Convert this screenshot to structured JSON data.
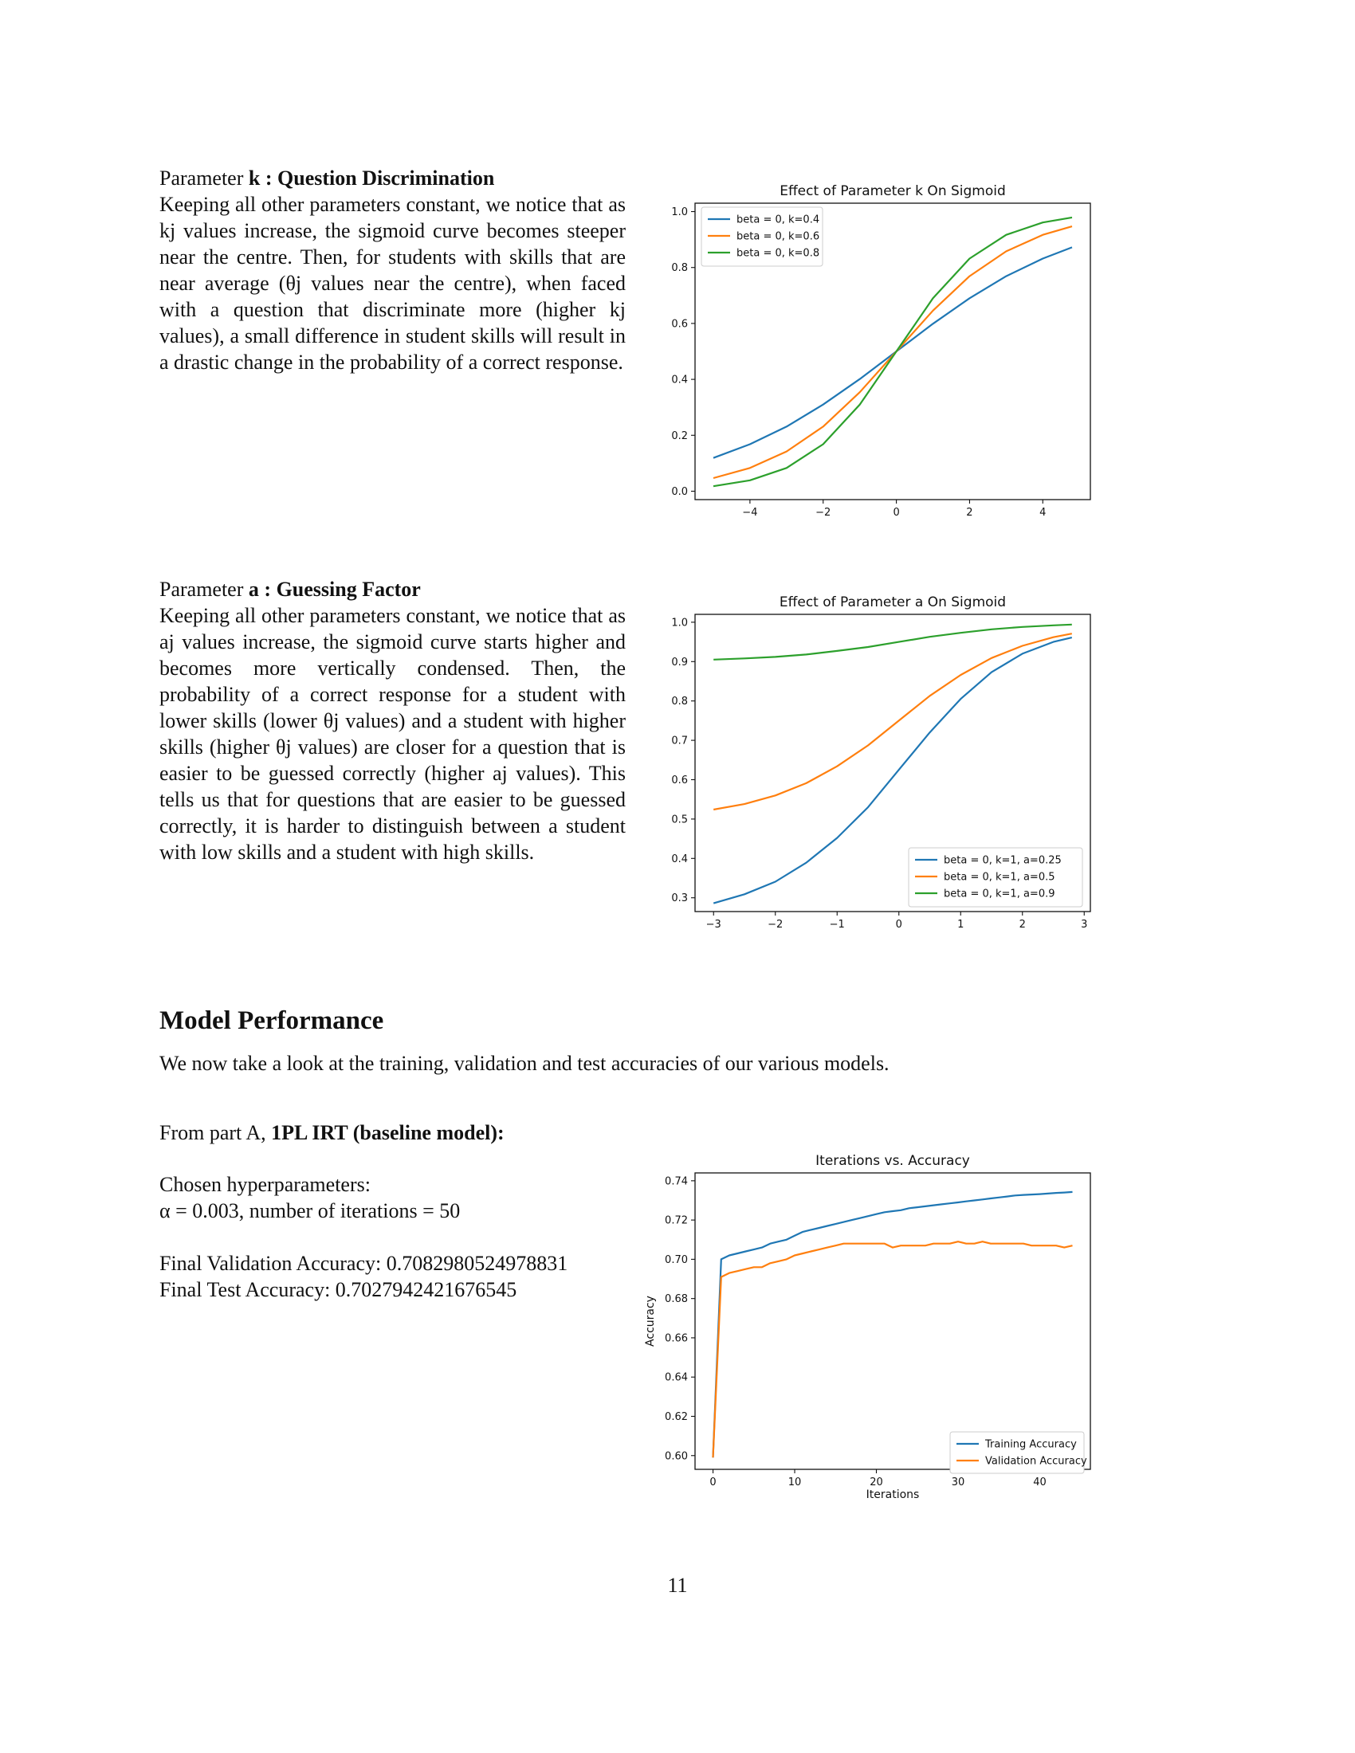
{
  "section_k": {
    "label_prefix": "Parameter",
    "param": "k :",
    "title": "Question Discrimination",
    "body": "Keeping all other parameters constant, we notice that as kj values increase, the sigmoid curve becomes steeper near the centre. Then, for students with skills that are near average (θj values near the centre), when faced with a question that discriminate more (higher kj values), a small difference in student skills will result in a drastic change in the probability of a correct response."
  },
  "section_a": {
    "label_prefix": "Parameter",
    "param": "a :",
    "title": "Guessing Factor",
    "body": "Keeping all other parameters constant, we notice that as aj values increase, the sigmoid curve starts higher and becomes more vertically condensed. Then, the probability of a correct response for a student with lower skills (lower θj values) and a student with higher skills (higher θj values) are closer for a question that is easier to be guessed correctly (higher aj values). This tells us that for questions that are easier to be guessed correctly, it is harder to distinguish between a student with low skills and a student with high skills."
  },
  "model_performance": {
    "heading": "Model Performance",
    "intro": "We now take a look at the training, validation and test accuracies of our various models.",
    "part_prefix": "From part A,",
    "part_title": "1PL IRT (baseline model):",
    "hyper_label": "Chosen hyperparameters:",
    "hyper_values": "α = 0.003, number of iterations = 50",
    "val_acc": "Final Validation Accuracy: 0.7082980524978831",
    "test_acc": "Final Test Accuracy: 0.7027942421676545"
  },
  "page_number": "11",
  "colors": {
    "blue": "#1f77b4",
    "orange": "#ff7f0e",
    "green": "#2ca02c"
  },
  "chart_data": [
    {
      "type": "line",
      "title": "Effect of Parameter k On Sigmoid",
      "xlabel": "",
      "ylabel": "",
      "xlim": [
        -5.5,
        5.3
      ],
      "ylim": [
        -0.03,
        1.03
      ],
      "xticks": [
        -4,
        -2,
        0,
        2,
        4
      ],
      "xtick_labels": [
        "−4",
        "−2",
        "0",
        "2",
        "4"
      ],
      "yticks": [
        0.0,
        0.2,
        0.4,
        0.6,
        0.8,
        1.0
      ],
      "ytick_labels": [
        "0.0",
        "0.2",
        "0.4",
        "0.6",
        "0.8",
        "1.0"
      ],
      "legend": "top-left",
      "series": [
        {
          "name": "beta = 0, k=0.4",
          "color": "#1f77b4",
          "x": [
            -5,
            -4,
            -3,
            -2,
            -1,
            0,
            1,
            2,
            3,
            4,
            4.8
          ],
          "y": [
            0.119,
            0.168,
            0.231,
            0.31,
            0.401,
            0.5,
            0.599,
            0.69,
            0.769,
            0.832,
            0.872
          ]
        },
        {
          "name": "beta = 0, k=0.6",
          "color": "#ff7f0e",
          "x": [
            -5,
            -4,
            -3,
            -2,
            -1,
            0,
            1,
            2,
            3,
            4,
            4.8
          ],
          "y": [
            0.047,
            0.083,
            0.142,
            0.231,
            0.354,
            0.5,
            0.646,
            0.769,
            0.858,
            0.917,
            0.947
          ]
        },
        {
          "name": "beta = 0, k=0.8",
          "color": "#2ca02c",
          "x": [
            -5,
            -4,
            -3,
            -2,
            -1,
            0,
            1,
            2,
            3,
            4,
            4.8
          ],
          "y": [
            0.018,
            0.039,
            0.083,
            0.168,
            0.31,
            0.5,
            0.69,
            0.832,
            0.917,
            0.961,
            0.979
          ]
        }
      ]
    },
    {
      "type": "line",
      "title": "Effect of Parameter a On Sigmoid",
      "xlabel": "",
      "ylabel": "",
      "xlim": [
        -3.3,
        3.1
      ],
      "ylim": [
        0.265,
        1.02
      ],
      "xticks": [
        -3,
        -2,
        -1,
        0,
        1,
        2,
        3
      ],
      "xtick_labels": [
        "−3",
        "−2",
        "−1",
        "0",
        "1",
        "2",
        "3"
      ],
      "yticks": [
        0.3,
        0.4,
        0.5,
        0.6,
        0.7,
        0.8,
        0.9,
        1.0
      ],
      "ytick_labels": [
        "0.3",
        "0.4",
        "0.5",
        "0.6",
        "0.7",
        "0.8",
        "0.9",
        "1.0"
      ],
      "legend": "bottom-right",
      "series": [
        {
          "name": "beta = 0, k=1, a=0.25",
          "color": "#1f77b4",
          "x": [
            -3,
            -2.5,
            -2,
            -1.5,
            -1,
            -0.5,
            0,
            0.5,
            1,
            1.5,
            2,
            2.5,
            2.8
          ],
          "y": [
            0.286,
            0.309,
            0.341,
            0.389,
            0.452,
            0.53,
            0.625,
            0.72,
            0.805,
            0.873,
            0.92,
            0.95,
            0.961
          ]
        },
        {
          "name": "beta = 0, k=1, a=0.5",
          "color": "#ff7f0e",
          "x": [
            -3,
            -2.5,
            -2,
            -1.5,
            -1,
            -0.5,
            0,
            0.5,
            1,
            1.5,
            2,
            2.5,
            2.8
          ],
          "y": [
            0.524,
            0.538,
            0.56,
            0.591,
            0.634,
            0.687,
            0.75,
            0.813,
            0.866,
            0.909,
            0.94,
            0.962,
            0.971
          ]
        },
        {
          "name": "beta = 0, k=1, a=0.9",
          "color": "#2ca02c",
          "x": [
            -3,
            -2.5,
            -2,
            -1.5,
            -1,
            -0.5,
            0,
            0.5,
            1,
            1.5,
            2,
            2.5,
            2.8
          ],
          "y": [
            0.905,
            0.908,
            0.912,
            0.918,
            0.927,
            0.937,
            0.95,
            0.963,
            0.973,
            0.982,
            0.988,
            0.992,
            0.994
          ]
        }
      ]
    },
    {
      "type": "line",
      "title": "Iterations vs. Accuracy",
      "xlabel": "Iterations",
      "ylabel": "Accuracy",
      "xlim": [
        -2.2,
        46.2
      ],
      "ylim": [
        0.593,
        0.744
      ],
      "xticks": [
        0,
        10,
        20,
        30,
        40
      ],
      "xtick_labels": [
        "0",
        "10",
        "20",
        "30",
        "40"
      ],
      "yticks": [
        0.6,
        0.62,
        0.64,
        0.66,
        0.68,
        0.7,
        0.72,
        0.74
      ],
      "ytick_labels": [
        "0.60",
        "0.62",
        "0.64",
        "0.66",
        "0.68",
        "0.70",
        "0.72",
        "0.74"
      ],
      "legend": "bottom-right",
      "series": [
        {
          "name": "Training Accuracy",
          "color": "#1f77b4",
          "x": [
            0,
            1,
            2,
            3,
            4,
            5,
            6,
            7,
            8,
            9,
            10,
            11,
            12,
            13,
            14,
            15,
            16,
            17,
            18,
            19,
            20,
            21,
            22,
            23,
            24,
            25,
            26,
            27,
            28,
            29,
            30,
            31,
            32,
            33,
            34,
            35,
            36,
            37,
            38,
            39,
            40,
            41,
            42,
            43,
            44
          ],
          "y": [
            0.599,
            0.7,
            0.702,
            0.703,
            0.704,
            0.705,
            0.706,
            0.708,
            0.709,
            0.71,
            0.712,
            0.714,
            0.715,
            0.716,
            0.717,
            0.718,
            0.719,
            0.72,
            0.721,
            0.722,
            0.723,
            0.724,
            0.7245,
            0.725,
            0.726,
            0.7265,
            0.727,
            0.7275,
            0.728,
            0.7285,
            0.729,
            0.7295,
            0.73,
            0.7305,
            0.731,
            0.7315,
            0.732,
            0.7325,
            0.7328,
            0.733,
            0.7332,
            0.7335,
            0.7338,
            0.734,
            0.7343
          ]
        },
        {
          "name": "Validation Accuracy",
          "color": "#ff7f0e",
          "x": [
            0,
            1,
            2,
            3,
            4,
            5,
            6,
            7,
            8,
            9,
            10,
            11,
            12,
            13,
            14,
            15,
            16,
            17,
            18,
            19,
            20,
            21,
            22,
            23,
            24,
            25,
            26,
            27,
            28,
            29,
            30,
            31,
            32,
            33,
            34,
            35,
            36,
            37,
            38,
            39,
            40,
            41,
            42,
            43,
            44
          ],
          "y": [
            0.599,
            0.691,
            0.693,
            0.694,
            0.695,
            0.696,
            0.696,
            0.698,
            0.699,
            0.7,
            0.702,
            0.703,
            0.704,
            0.705,
            0.706,
            0.707,
            0.708,
            0.708,
            0.708,
            0.708,
            0.708,
            0.708,
            0.706,
            0.707,
            0.707,
            0.707,
            0.707,
            0.708,
            0.708,
            0.708,
            0.709,
            0.708,
            0.708,
            0.709,
            0.708,
            0.708,
            0.708,
            0.708,
            0.708,
            0.707,
            0.707,
            0.707,
            0.707,
            0.706,
            0.707
          ]
        }
      ]
    }
  ]
}
